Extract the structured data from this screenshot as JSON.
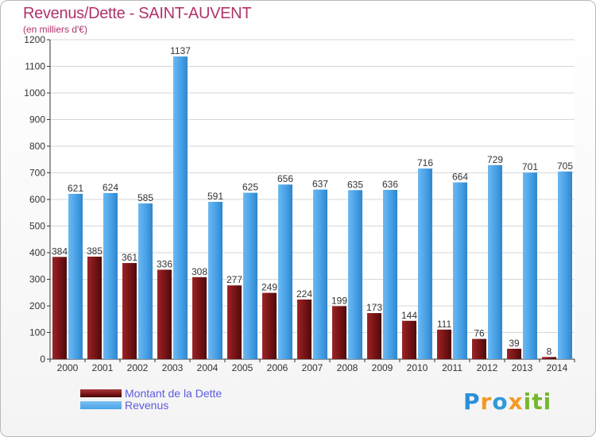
{
  "chart_data": {
    "type": "bar",
    "title": "Revenus/Dette - SAINT-AUVENT",
    "subtitle": "(en milliers d'€)",
    "categories": [
      "2000",
      "2001",
      "2002",
      "2003",
      "2004",
      "2005",
      "2006",
      "2007",
      "2008",
      "2009",
      "2010",
      "2011",
      "2012",
      "2013",
      "2014"
    ],
    "series": [
      {
        "name": "Montant de la Dette",
        "color": "#7a1416",
        "values": [
          384,
          385,
          361,
          336,
          308,
          277,
          249,
          224,
          199,
          173,
          144,
          111,
          76,
          39,
          8
        ]
      },
      {
        "name": "Revenus",
        "color": "#4aa3e8",
        "values": [
          621,
          624,
          585,
          1137,
          591,
          625,
          656,
          637,
          635,
          636,
          716,
          664,
          729,
          701,
          705
        ]
      }
    ],
    "ylim": [
      0,
      1200
    ],
    "yticks": [
      0,
      100,
      200,
      300,
      400,
      500,
      600,
      700,
      800,
      900,
      1000,
      1100,
      1200
    ],
    "grid": true,
    "legend": "bottom-left"
  },
  "branding": {
    "logo_letters": [
      "P",
      "r",
      "o",
      "x",
      "iti"
    ]
  }
}
